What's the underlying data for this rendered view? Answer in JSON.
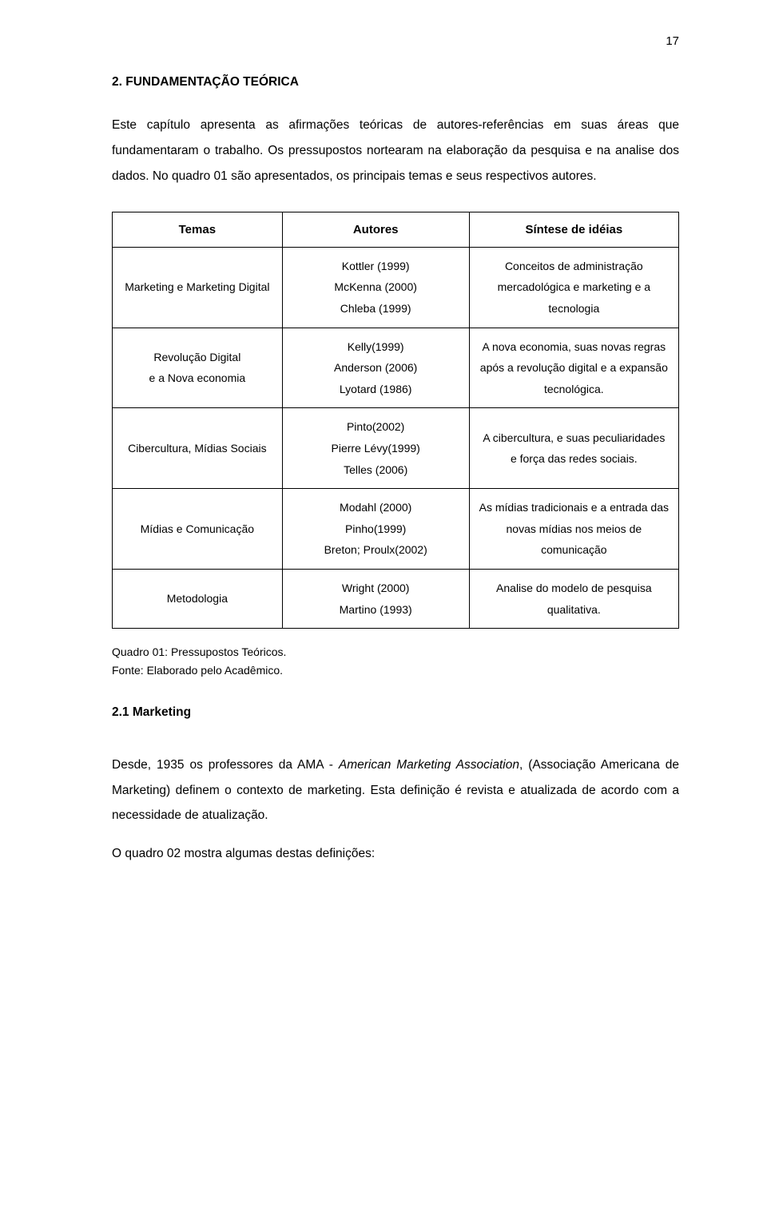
{
  "page_number": "17",
  "section_heading": "2. FUNDAMENTAÇÃO TEÓRICA",
  "intro_paragraph": "Este capítulo apresenta as afirmações teóricas de autores-referências em suas áreas que fundamentaram o trabalho. Os pressupostos nortearam na elaboração da pesquisa e na analise dos dados. No quadro 01 são apresentados, os principais temas e seus respectivos autores.",
  "table": {
    "headers": {
      "c1": "Temas",
      "c2": "Autores",
      "c3": "Síntese de idéias"
    },
    "rows": [
      {
        "temas": "Marketing e Marketing Digital",
        "autores": "Kottler (1999)\nMcKenna (2000)\nChleba (1999)",
        "sintese": "Conceitos de administração mercadológica e marketing e a tecnologia"
      },
      {
        "temas": "Revolução Digital\ne a Nova economia",
        "autores": "Kelly(1999)\nAnderson (2006)\nLyotard (1986)",
        "sintese": "A nova economia, suas novas regras após a revolução digital e a expansão tecnológica."
      },
      {
        "temas": "Cibercultura, Mídias Sociais",
        "autores": "Pinto(2002)\nPierre Lévy(1999)\nTelles (2006)",
        "sintese": "A cibercultura, e suas peculiaridades e força das redes sociais."
      },
      {
        "temas": "Mídias e Comunicação",
        "autores": "Modahl (2000)\nPinho(1999)\nBreton; Proulx(2002)",
        "sintese": "As mídias tradicionais e a entrada das novas mídias nos meios de comunicação"
      },
      {
        "temas": "Metodologia",
        "autores": "Wright (2000)\nMartino (1993)",
        "sintese": "Analise do modelo de pesquisa qualitativa."
      }
    ]
  },
  "caption_line1": "Quadro 01: Pressupostos Teóricos.",
  "caption_line2": "Fonte: Elaborado pelo Acadêmico.",
  "subsection_heading": "2.1 Marketing",
  "closing": {
    "before_italic": "Desde, 1935 os professores da AMA - ",
    "italic": "American Marketing Association",
    "after_italic": ", (Associação Americana de Marketing) definem o contexto de marketing. Esta definição é revista e atualizada de acordo com a necessidade de atualização.",
    "line2": "O quadro 02 mostra algumas destas definições:"
  }
}
